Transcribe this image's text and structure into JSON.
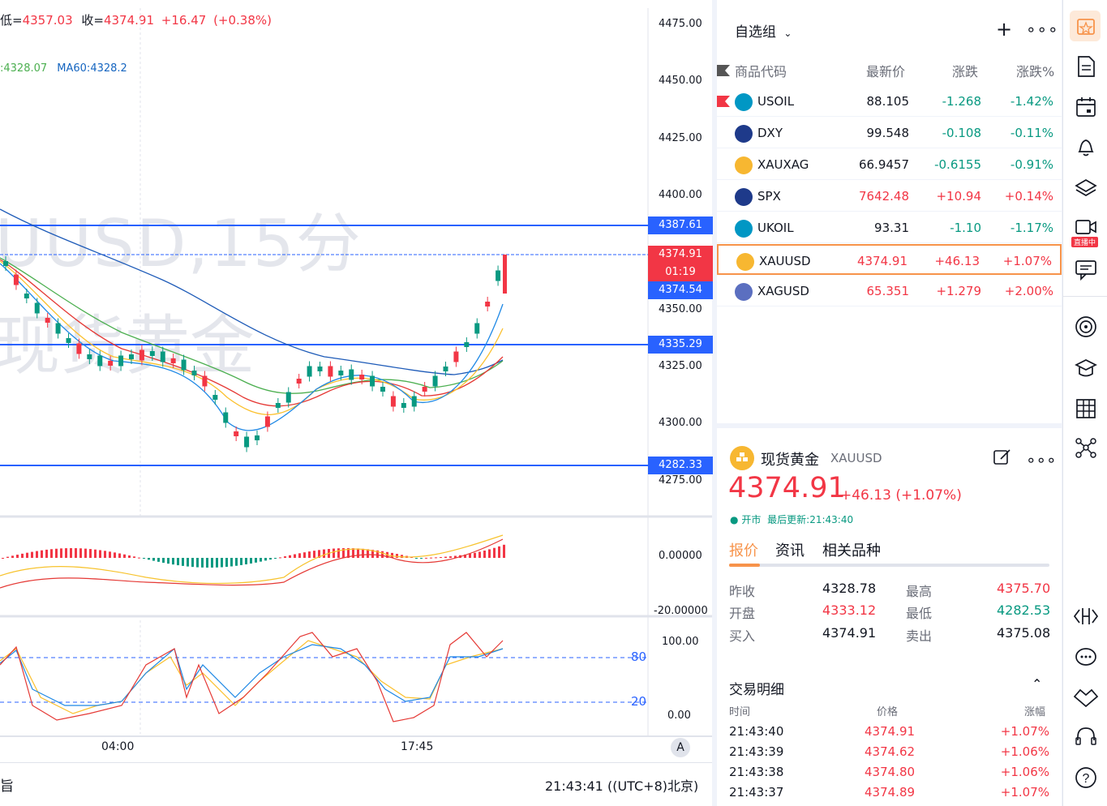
{
  "chart": {
    "ohlc_prefix_low": "低=",
    "low_val": "4357.03",
    "close_prefix": "收=",
    "close_val": "4374.91",
    "change": "+16.47",
    "change_pct": "(+0.38%)",
    "ma_partial": ":4328.07",
    "ma60": "MA60:4328.2",
    "watermark_line1": "UUSD,15分",
    "watermark_line2": "现货黄金",
    "price_labels": [
      "4475.00",
      "4450.00",
      "4425.00",
      "4400.00",
      "4350.00",
      "4325.00",
      "4300.00",
      "4275.00"
    ],
    "level_tags": {
      "l1": "4387.61",
      "current": "4374.91",
      "countdown": "01:19",
      "l2": "4374.54",
      "l3": "4335.29",
      "l4": "4282.33"
    },
    "macd_labels": [
      "0.00000",
      "-20.00000"
    ],
    "stoch_labels": [
      "100.00",
      "0.00"
    ],
    "stoch_levels": [
      "80",
      "20"
    ],
    "time_labels": [
      "04:00",
      "17:45"
    ],
    "auto_btn": "A",
    "clock": "21:43:41",
    "timezone": "((UTC+8)北京)",
    "left_glyph": "旨"
  },
  "watchlist": {
    "group_name": "自选组",
    "columns": [
      "商品代码",
      "最新价",
      "涨跌",
      "涨跌%"
    ],
    "rows": [
      {
        "symbol": "USOIL",
        "price": "88.105",
        "chg": "-1.268",
        "pct": "-1.42%",
        "dir": "down",
        "flagged": true,
        "selected": false
      },
      {
        "symbol": "DXY",
        "price": "99.548",
        "chg": "-0.108",
        "pct": "-0.11%",
        "dir": "down",
        "flagged": false,
        "selected": false
      },
      {
        "symbol": "XAUXAG",
        "price": "66.9457",
        "chg": "-0.6155",
        "pct": "-0.91%",
        "dir": "down",
        "flagged": false,
        "selected": false
      },
      {
        "symbol": "SPX",
        "price": "7642.48",
        "chg": "+10.94",
        "pct": "+0.14%",
        "dir": "up",
        "flagged": false,
        "selected": false
      },
      {
        "symbol": "UKOIL",
        "price": "93.31",
        "chg": "-1.10",
        "pct": "-1.17%",
        "dir": "down",
        "flagged": false,
        "selected": false
      },
      {
        "symbol": "XAUUSD",
        "price": "4374.91",
        "chg": "+46.13",
        "pct": "+1.07%",
        "dir": "up",
        "flagged": false,
        "selected": true
      },
      {
        "symbol": "XAGUSD",
        "price": "65.351",
        "chg": "+1.279",
        "pct": "+2.00%",
        "dir": "up",
        "flagged": false,
        "selected": false
      }
    ]
  },
  "detail": {
    "name": "现货黄金",
    "symbol": "XAUUSD",
    "price": "4374.91",
    "change": "+46.13",
    "change_pct": "(+1.07%)",
    "status": "开市",
    "updated": "最后更新:21:43:40",
    "tabs": [
      "报价",
      "资讯",
      "相关品种"
    ],
    "stats": {
      "prev_close_lbl": "昨收",
      "prev_close": "4328.78",
      "high_lbl": "最高",
      "high": "4375.70",
      "open_lbl": "开盘",
      "open": "4333.12",
      "low_lbl": "最低",
      "low": "4282.53",
      "bid_lbl": "买入",
      "bid": "4374.91",
      "ask_lbl": "卖出",
      "ask": "4375.08"
    },
    "trades_title": "交易明细",
    "trades_cols": [
      "时间",
      "价格",
      "涨幅"
    ],
    "trades": [
      {
        "time": "21:43:40",
        "price": "4374.91",
        "pct": "+1.07%"
      },
      {
        "time": "21:43:39",
        "price": "4374.62",
        "pct": "+1.06%"
      },
      {
        "time": "21:43:38",
        "price": "4374.80",
        "pct": "+1.06%"
      },
      {
        "time": "21:43:37",
        "price": "4374.89",
        "pct": "+1.07%"
      }
    ]
  },
  "toolbar": {
    "live_badge": "直播中",
    "icons": [
      "alert-icon",
      "document-icon",
      "calendar-icon",
      "bell-icon",
      "layers-icon",
      "live-video-icon",
      "chat-icon",
      "target-icon",
      "education-icon",
      "grid-icon",
      "network-icon",
      "code-icon",
      "comment-icon",
      "handshake-icon",
      "headset-icon",
      "help-icon"
    ]
  },
  "colors": {
    "up": "#f23645",
    "down": "#089981",
    "accent": "#2962ff",
    "level_line": "#2962ff",
    "highlight": "#f7934a"
  }
}
